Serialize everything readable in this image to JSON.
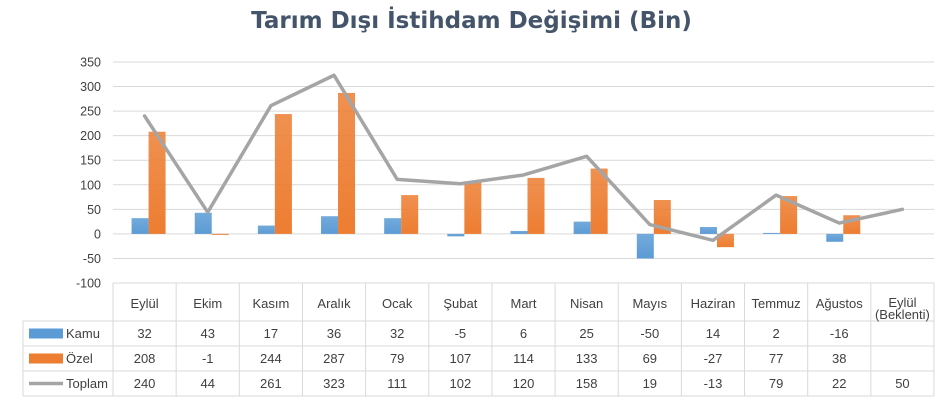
{
  "chart_data": {
    "type": "bar",
    "title": "Tarım Dışı İstihdam Değişimi (Bin)",
    "categories": [
      "Eylül",
      "Ekim",
      "Kasım",
      "Aralık",
      "Ocak",
      "Şubat",
      "Mart",
      "Nisan",
      "Mayıs",
      "Haziran",
      "Temmuz",
      "Ağustos",
      [
        "Eylül",
        "(Beklenti)"
      ]
    ],
    "ylim": [
      -100,
      350
    ],
    "yticks": [
      "-100",
      "-50",
      "0",
      "50",
      "100",
      "150",
      "200",
      "250",
      "300",
      "350"
    ],
    "grid": true,
    "legend_placement": "data-table",
    "series": [
      {
        "name": "Kamu",
        "kind": "bar",
        "color": "#5b9bd5",
        "values": [
          32,
          43,
          17,
          36,
          32,
          -5,
          6,
          25,
          -50,
          14,
          2,
          -16,
          null
        ]
      },
      {
        "name": "Özel",
        "kind": "bar",
        "color": "#ed7d31",
        "values": [
          208,
          -1,
          244,
          287,
          79,
          107,
          114,
          133,
          69,
          -27,
          77,
          38,
          null
        ]
      },
      {
        "name": "Toplam",
        "kind": "line",
        "color": "#a5a5a5",
        "values": [
          240,
          44,
          261,
          323,
          111,
          102,
          120,
          158,
          19,
          -13,
          79,
          22,
          50
        ]
      }
    ]
  }
}
